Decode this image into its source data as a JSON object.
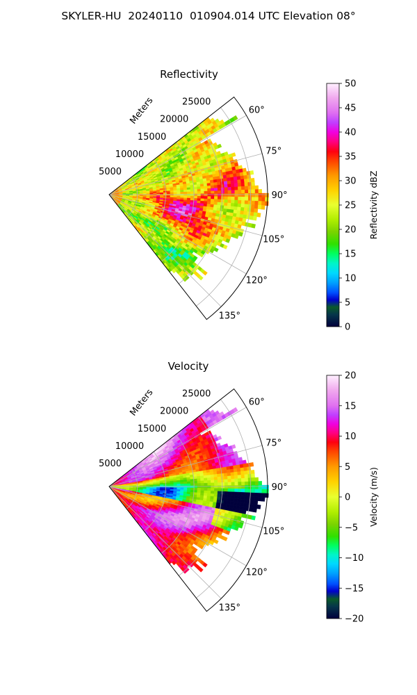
{
  "figure": {
    "suptitle": "SKYLER-HU  20240110  010904.014 UTC Elevation 08°"
  },
  "chart_data": [
    {
      "type": "heatmap",
      "subtype": "polar-sector (PPI radar sweep)",
      "title": "Reflectivity",
      "radial_axis_label": "Meters",
      "radial_ticks": [
        5000,
        10000,
        15000,
        20000,
        25000
      ],
      "radial_tick_labels": [
        "5000",
        "10000",
        "15000",
        "20000",
        "25000"
      ],
      "azimuth_ticks": [
        60,
        75,
        90,
        105,
        120,
        135
      ],
      "azimuth_tick_labels": [
        "60°",
        "75°",
        "90°",
        "105°",
        "120°",
        "135°"
      ],
      "azimuth_range_deg": [
        52,
        142
      ],
      "radial_range_m": [
        0,
        28000
      ],
      "grid": true,
      "colorbar": {
        "label": "Reflectivity dBZ",
        "range": [
          0,
          50
        ],
        "ticks": [
          0,
          5,
          10,
          15,
          20,
          25,
          30,
          35,
          40,
          45,
          50
        ],
        "tick_labels": [
          "0",
          "5",
          "10",
          "15",
          "20",
          "25",
          "30",
          "35",
          "40",
          "45",
          "50"
        ],
        "colors": [
          {
            "v": 0,
            "c": "#00003c"
          },
          {
            "v": 2.5,
            "c": "#06364a"
          },
          {
            "v": 4,
            "c": "#0a5a2a"
          },
          {
            "v": 5.5,
            "c": "#0000cc"
          },
          {
            "v": 7,
            "c": "#0050ff"
          },
          {
            "v": 9,
            "c": "#00a0ff"
          },
          {
            "v": 11,
            "c": "#00d8ff"
          },
          {
            "v": 13,
            "c": "#00f5c8"
          },
          {
            "v": 15,
            "c": "#00ff60"
          },
          {
            "v": 17,
            "c": "#30e000"
          },
          {
            "v": 19.5,
            "c": "#7ad300"
          },
          {
            "v": 22,
            "c": "#b0ee00"
          },
          {
            "v": 25,
            "c": "#e8ff30"
          },
          {
            "v": 28,
            "c": "#ffd200"
          },
          {
            "v": 31,
            "c": "#ff9a00"
          },
          {
            "v": 34,
            "c": "#ff4400"
          },
          {
            "v": 36,
            "c": "#ff0010"
          },
          {
            "v": 38,
            "c": "#ff0080"
          },
          {
            "v": 40,
            "c": "#f000e0"
          },
          {
            "v": 42,
            "c": "#c040ff"
          },
          {
            "v": 44,
            "c": "#e070f0"
          },
          {
            "v": 47,
            "c": "#f0a8ee"
          },
          {
            "v": 50,
            "c": "#fff0ff"
          }
        ]
      },
      "field_description": "Mostly 20-30 dBZ (yellow/green) with cells of 35-45 dBZ near azimuth 85-110° at 8-20 km"
    },
    {
      "type": "heatmap",
      "subtype": "polar-sector (PPI radar sweep)",
      "title": "Velocity",
      "radial_axis_label": "Meters",
      "radial_ticks": [
        5000,
        10000,
        15000,
        20000,
        25000
      ],
      "radial_tick_labels": [
        "5000",
        "10000",
        "15000",
        "20000",
        "25000"
      ],
      "azimuth_ticks": [
        60,
        75,
        90,
        105,
        120,
        135
      ],
      "azimuth_tick_labels": [
        "60°",
        "75°",
        "90°",
        "105°",
        "120°",
        "135°"
      ],
      "azimuth_range_deg": [
        52,
        142
      ],
      "radial_range_m": [
        0,
        28000
      ],
      "grid": true,
      "colorbar": {
        "label": "Velocity (m/s)",
        "range": [
          -20,
          20
        ],
        "ticks": [
          -20,
          -15,
          -10,
          -5,
          0,
          5,
          10,
          15,
          20
        ],
        "tick_labels": [
          "−20",
          "−15",
          "−10",
          "−5",
          "0",
          "5",
          "10",
          "15",
          "20"
        ],
        "colors": [
          {
            "v": -20,
            "c": "#00003c"
          },
          {
            "v": -18,
            "c": "#06364a"
          },
          {
            "v": -16.8,
            "c": "#0a5a2a"
          },
          {
            "v": -15.5,
            "c": "#0000cc"
          },
          {
            "v": -14.3,
            "c": "#0050ff"
          },
          {
            "v": -12.6,
            "c": "#00a0ff"
          },
          {
            "v": -11,
            "c": "#00d8ff"
          },
          {
            "v": -9.5,
            "c": "#00f5c8"
          },
          {
            "v": -8,
            "c": "#00ff60"
          },
          {
            "v": -6.5,
            "c": "#30e000"
          },
          {
            "v": -4.5,
            "c": "#7ad300"
          },
          {
            "v": -2.5,
            "c": "#b0ee00"
          },
          {
            "v": 0,
            "c": "#e8ff30"
          },
          {
            "v": 2.5,
            "c": "#ffd200"
          },
          {
            "v": 5,
            "c": "#ff9a00"
          },
          {
            "v": 7.5,
            "c": "#ff4400"
          },
          {
            "v": 9,
            "c": "#ff0010"
          },
          {
            "v": 10.5,
            "c": "#ff0080"
          },
          {
            "v": 12,
            "c": "#f000e0"
          },
          {
            "v": 13.5,
            "c": "#c040ff"
          },
          {
            "v": 15,
            "c": "#e070f0"
          },
          {
            "v": 17.5,
            "c": "#f0a8ee"
          },
          {
            "v": 20,
            "c": "#fff0ff"
          }
        ]
      },
      "field_description": "Banded field: positive (red/magenta) toward 60-80°, yellow/green/cyan near 85-95°, red/magenta band near 100-130° with cyan at far range"
    }
  ]
}
